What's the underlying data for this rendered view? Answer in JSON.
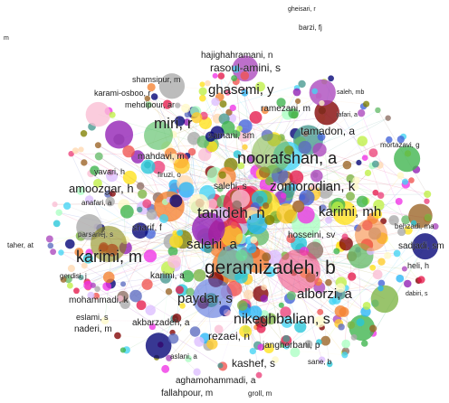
{
  "network": {
    "labels": [
      {
        "text": "gheisari, r",
        "size": "xs"
      },
      {
        "text": "barzi, fj",
        "size": "xs"
      },
      {
        "text": "hajighahramani, n",
        "size": "s"
      },
      {
        "text": "rasoul-amini, s",
        "size": "m"
      },
      {
        "text": "shamsipur, m",
        "size": "s"
      },
      {
        "text": "ghasemi, y",
        "size": "l"
      },
      {
        "text": "saleh, mb",
        "size": "xs"
      },
      {
        "text": "karami-osboo, r",
        "size": "s"
      },
      {
        "text": "mehdipour, ar",
        "size": "s"
      },
      {
        "text": "ramezani, m",
        "size": "s"
      },
      {
        "text": "jafari, a",
        "size": "xs"
      },
      {
        "text": "miri, r",
        "size": "l"
      },
      {
        "text": "tamadon, a",
        "size": "m"
      },
      {
        "text": "samani, sm",
        "size": "s"
      },
      {
        "text": "mortazavi, g",
        "size": "xs"
      },
      {
        "text": "mahdavi, m",
        "size": "s"
      },
      {
        "text": "noorafshan, a",
        "size": "xl"
      },
      {
        "text": "yavari, h",
        "size": "s"
      },
      {
        "text": "firuzi, o",
        "size": "xs"
      },
      {
        "text": "salehi, s",
        "size": "s"
      },
      {
        "text": "zomorodian, k",
        "size": "l"
      },
      {
        "text": "amoozgar, h",
        "size": "m"
      },
      {
        "text": "anafari, a",
        "size": "xs"
      },
      {
        "text": "karimi, mh",
        "size": "l"
      },
      {
        "text": "tanideh, n",
        "size": "l"
      },
      {
        "text": "sharif, f",
        "size": "s"
      },
      {
        "text": "hosseini, sv",
        "size": "s"
      },
      {
        "text": "behzadi, ma",
        "size": "xs"
      },
      {
        "text": "parsanej, s",
        "size": "xs"
      },
      {
        "text": "sadjadi, sm",
        "size": "s"
      },
      {
        "text": "taher, at",
        "size": "xs"
      },
      {
        "text": "karimi, m",
        "size": "xl"
      },
      {
        "text": "salehi, a",
        "size": "l"
      },
      {
        "text": "geramizadeh, b",
        "size": "xxl"
      },
      {
        "text": "heli, h",
        "size": "s"
      },
      {
        "text": "gerdisi, j",
        "size": "xs"
      },
      {
        "text": "karimi, a",
        "size": "s"
      },
      {
        "text": "paydar, s",
        "size": "l"
      },
      {
        "text": "alborzi, a",
        "size": "l"
      },
      {
        "text": "dabiri, s",
        "size": "xs"
      },
      {
        "text": "mohammadi, k",
        "size": "s"
      },
      {
        "text": "nikeghbalian, s",
        "size": "xl"
      },
      {
        "text": "eslami, s",
        "size": "s"
      },
      {
        "text": "akbarzadeh, a",
        "size": "s"
      },
      {
        "text": "naderi, m",
        "size": "s"
      },
      {
        "text": "rezaei, n",
        "size": "m"
      },
      {
        "text": "janghorbani, p",
        "size": "s"
      },
      {
        "text": "aslani, a",
        "size": "xs"
      },
      {
        "text": "kashef, s",
        "size": "m"
      },
      {
        "text": "sane, b",
        "size": "xs"
      },
      {
        "text": "aghamohammadi, a",
        "size": "s"
      },
      {
        "text": "fallahpour, m",
        "size": "s"
      },
      {
        "text": "groll, m",
        "size": "xs"
      },
      {
        "text": "m",
        "size": "xs"
      }
    ],
    "palette": [
      "#e6194b",
      "#3cb44b",
      "#ffe119",
      "#4363d8",
      "#f58231",
      "#911eb4",
      "#42d4f4",
      "#f032e6",
      "#bfef45",
      "#fabed4",
      "#469990",
      "#dcbeff",
      "#9a6324",
      "#fffac8",
      "#800000",
      "#aaffc3",
      "#808000",
      "#ffd8b1",
      "#000075",
      "#a9a9a9",
      "#7cb342",
      "#26c6da",
      "#ab47bc",
      "#ef5350",
      "#29b6f6",
      "#66bb6a",
      "#ffca28",
      "#ec407a",
      "#5c6bc0",
      "#8d6e63"
    ]
  }
}
